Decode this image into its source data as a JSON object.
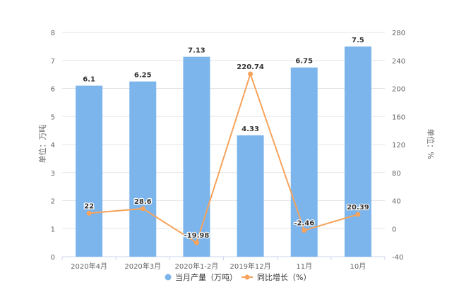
{
  "chart_data": {
    "type": "bar",
    "categories": [
      "2020年4月",
      "2020年3月",
      "2020年1-2月",
      "2019年12月",
      "11月",
      "10月"
    ],
    "series": [
      {
        "name": "当月产量（万吨）",
        "type": "bar",
        "axis": "left",
        "values": [
          6.1,
          6.25,
          7.13,
          4.33,
          6.75,
          7.5
        ],
        "labels": [
          "6.1",
          "6.25",
          "7.13",
          "4.33",
          "6.75",
          "7.5"
        ]
      },
      {
        "name": "同比增长（%）",
        "type": "line",
        "axis": "right",
        "values": [
          22,
          28.6,
          -19.98,
          220.74,
          -2.46,
          20.39
        ],
        "labels": [
          "22",
          "28.6",
          "-19.98",
          "220.74",
          "-2.46",
          "20.39"
        ]
      }
    ],
    "y_left": {
      "label": "单位：万吨",
      "min": 0,
      "max": 8,
      "ticks": [
        "0",
        "1",
        "2",
        "3",
        "4",
        "5",
        "6",
        "7",
        "8"
      ]
    },
    "y_right": {
      "label": "单位：%",
      "min": -40,
      "max": 280,
      "ticks": [
        "-40",
        "0",
        "40",
        "80",
        "120",
        "160",
        "200",
        "240",
        "280"
      ]
    },
    "grid": true,
    "legend_position": "bottom",
    "colors": {
      "bar": "#7cb5ec",
      "line": "#f7a35c",
      "grid": "#e6e6e6",
      "axis_text": "#666666",
      "label_text": "#333333"
    }
  }
}
